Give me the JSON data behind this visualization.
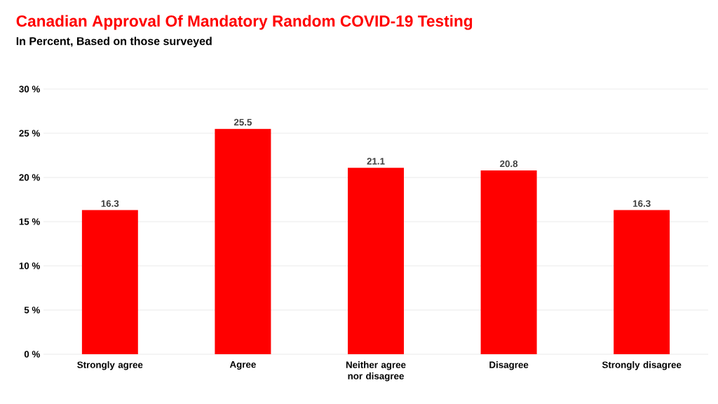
{
  "chart_data": {
    "type": "bar",
    "title": "Canadian Approval Of Mandatory Random COVID-19 Testing",
    "subtitle": "In Percent, Based on those surveyed",
    "categories": [
      "Strongly agree",
      "Agree",
      "Neither agree nor disagree",
      "Disagree",
      "Strongly disagree"
    ],
    "values": [
      16.3,
      25.5,
      21.1,
      20.8,
      16.3
    ],
    "color": "#ff0000",
    "ylim": [
      0,
      30
    ],
    "yticks": [
      {
        "value": 0,
        "label": "0 %"
      },
      {
        "value": 5,
        "label": "5 %"
      },
      {
        "value": 10,
        "label": "10 %"
      },
      {
        "value": 15,
        "label": "15 %"
      },
      {
        "value": 20,
        "label": "20 %"
      },
      {
        "value": 25,
        "label": "25 %"
      },
      {
        "value": 30,
        "label": "30 %"
      }
    ],
    "grid": "y",
    "data_labels": true
  }
}
